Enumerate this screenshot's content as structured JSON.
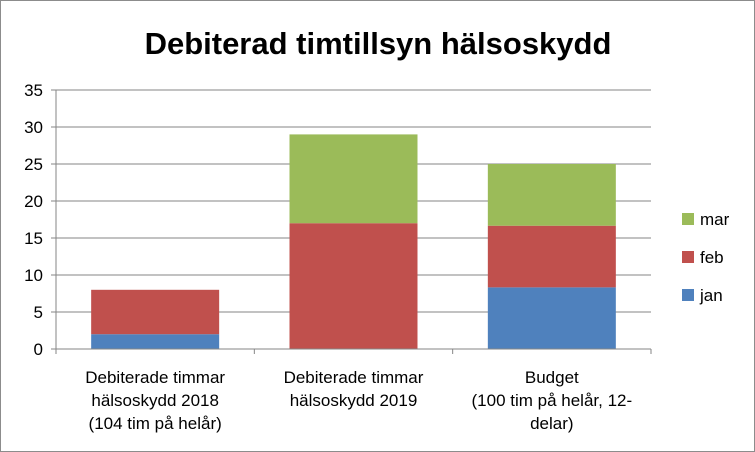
{
  "chart_data": {
    "type": "bar",
    "stacked": true,
    "title": "Debiterad timtillsyn hälsoskydd",
    "xlabel": "",
    "ylabel": "",
    "ylim": [
      0,
      35
    ],
    "yticks": [
      0,
      5,
      10,
      15,
      20,
      25,
      30,
      35
    ],
    "grid": true,
    "legend_position": "right",
    "categories": [
      [
        "Debiterade timmar",
        "hälsoskydd 2018",
        "(104 tim på helår)"
      ],
      [
        "Debiterade timmar",
        "hälsoskydd 2019"
      ],
      [
        "Budget",
        "(100 tim på helår, 12-",
        "delar)"
      ]
    ],
    "series": [
      {
        "name": "jan",
        "color": "#4f81bd",
        "values": [
          2,
          0,
          8.33
        ]
      },
      {
        "name": "feb",
        "color": "#c0504d",
        "values": [
          6,
          17,
          8.33
        ]
      },
      {
        "name": "mar",
        "color": "#9bbb59",
        "values": [
          0,
          12,
          8.34
        ]
      }
    ]
  }
}
